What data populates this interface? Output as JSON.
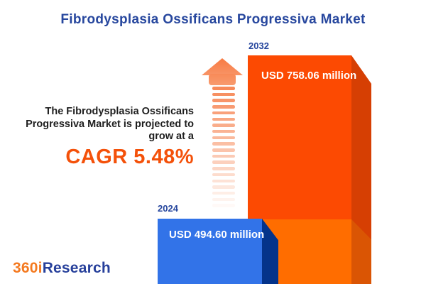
{
  "title": "Fibrodysplasia Ossificans Progressiva Market",
  "annotation": {
    "lines": [
      "The Fibrodysplasia Ossificans",
      "Progressiva Market is projected to",
      "grow at a"
    ],
    "cagr_label": "CAGR 5.48%"
  },
  "chart_data": {
    "type": "bar",
    "title": "Fibrodysplasia Ossificans Progressiva Market",
    "categories": [
      "2024",
      "2032"
    ],
    "values": [
      494.6,
      758.06
    ],
    "unit": "USD million",
    "value_labels": [
      "USD 494.60 million",
      "USD 758.06 million"
    ],
    "cagr_percent": 5.48,
    "xlabel": "",
    "ylabel": "",
    "legend": "none",
    "grid": false,
    "layout_hint": "two 3D bars rising from bottom edge, 2024 blue in front-left, 2032 orange behind-right, gradient striped growth arrow between annotation and bars"
  },
  "bars": {
    "y2024": {
      "year": "2024",
      "label": "USD 494.60 million",
      "face_color": "#3273E8",
      "side_color": "#04338A"
    },
    "y2032": {
      "year": "2032",
      "label": "USD 758.06 million",
      "face_color_top": "#FC4A02",
      "face_color_bottom": "#FF6D00",
      "side_color_top": "#D63F03",
      "side_color_bottom": "#DA5504"
    }
  },
  "arrow": {
    "color": "#F78A5A",
    "stripe_count": 20
  },
  "colors": {
    "title_blue": "#27479E",
    "cagr_orange": "#F4510A",
    "body_text": "#1E1E1E",
    "background": "#FFFFFF"
  },
  "logo": {
    "prefix": "360i",
    "suffix": "Research",
    "prefix_color": "#F4791F",
    "suffix_color": "#27409B"
  }
}
